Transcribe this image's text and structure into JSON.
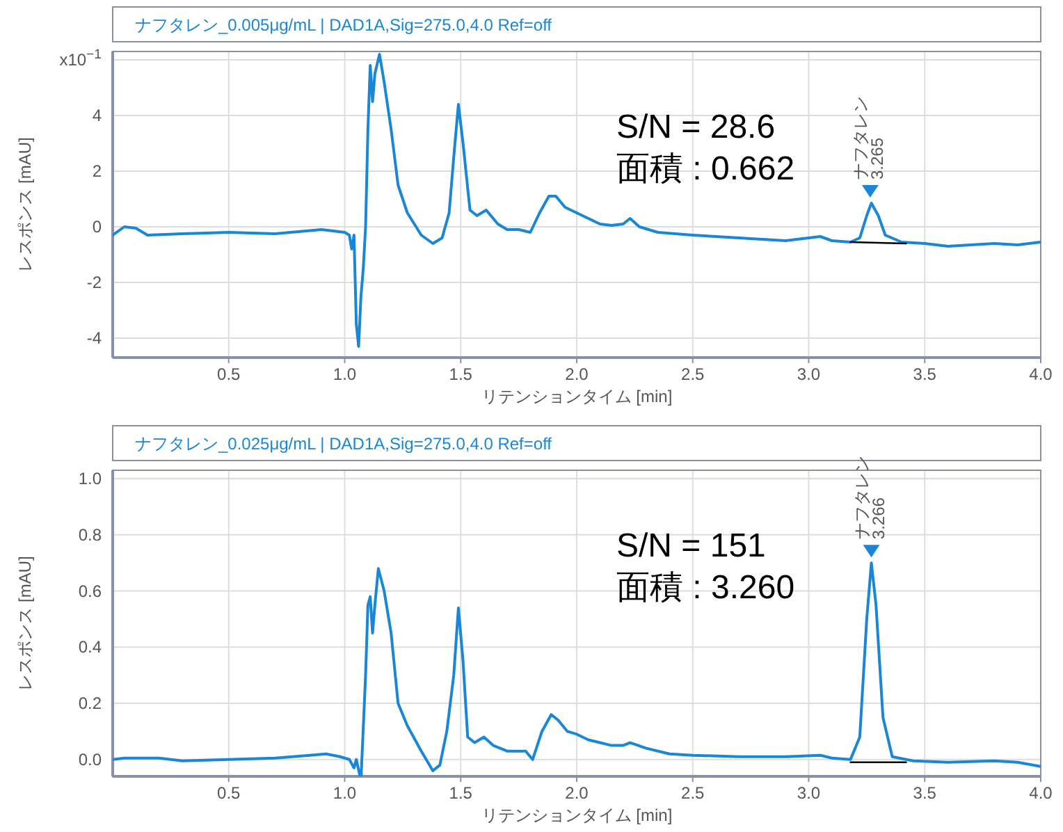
{
  "chart_data": [
    {
      "type": "line",
      "title": "ナフタレン_0.005μg/mL | DAD1A,Sig=275.0,4.0  Ref=off",
      "xlabel": "リテンションタイム [min]",
      "ylabel": "レスポンス [mAU]",
      "xlim": [
        0,
        4.0
      ],
      "xticks": [
        {
          "value": 0.5,
          "label": "0.5"
        },
        {
          "value": 1.0,
          "label": "1.0"
        },
        {
          "value": 1.5,
          "label": "1.5"
        },
        {
          "value": 2.0,
          "label": "2.0"
        },
        {
          "value": 2.5,
          "label": "2.5"
        },
        {
          "value": 3.0,
          "label": "3.0"
        },
        {
          "value": 3.5,
          "label": "3.5"
        },
        {
          "value": 4.0,
          "label": "4.0"
        }
      ],
      "ylim": [
        -4.7,
        6.3
      ],
      "yticks": [
        -4,
        -2,
        0,
        2,
        4,
        {
          "value": 6,
          "label": "x10$^{−1}$"
        }
      ],
      "grid": true,
      "series": [
        {
          "color": "#1a86d6",
          "x": [
            0,
            0.05,
            0.1,
            0.15,
            0.3,
            0.5,
            0.7,
            0.9,
            1.0,
            1.02,
            1.03,
            1.04,
            1.05,
            1.06,
            1.07,
            1.08,
            1.09,
            1.1,
            1.11,
            1.12,
            1.13,
            1.15,
            1.17,
            1.2,
            1.23,
            1.27,
            1.33,
            1.38,
            1.42,
            1.45,
            1.47,
            1.49,
            1.51,
            1.54,
            1.57,
            1.61,
            1.66,
            1.7,
            1.75,
            1.8,
            1.84,
            1.88,
            1.91,
            1.95,
            2.0,
            2.05,
            2.1,
            2.15,
            2.2,
            2.23,
            2.27,
            2.35,
            2.5,
            2.7,
            2.9,
            3.0,
            3.05,
            3.1,
            3.18,
            3.22,
            3.25,
            3.27,
            3.3,
            3.33,
            3.4,
            3.5,
            3.6,
            3.8,
            3.9,
            4.0
          ],
          "values": [
            -0.3,
            0.0,
            -0.05,
            -0.3,
            -0.25,
            -0.2,
            -0.25,
            -0.1,
            -0.2,
            -0.3,
            -0.8,
            -0.3,
            -3.5,
            -4.3,
            -2.5,
            -1.5,
            0,
            3.5,
            5.8,
            4.5,
            5.5,
            6.2,
            5.2,
            3.5,
            1.5,
            0.5,
            -0.3,
            -0.6,
            -0.4,
            0.5,
            2.5,
            4.4,
            3.0,
            0.6,
            0.4,
            0.6,
            0.1,
            -0.1,
            -0.1,
            -0.2,
            0.5,
            1.1,
            1.1,
            0.7,
            0.5,
            0.3,
            0.1,
            0.05,
            0.1,
            0.3,
            0.0,
            -0.2,
            -0.3,
            -0.4,
            -0.5,
            -0.4,
            -0.35,
            -0.5,
            -0.55,
            -0.4,
            0.4,
            0.85,
            0.4,
            -0.3,
            -0.55,
            -0.6,
            -0.7,
            -0.6,
            -0.65,
            -0.55
          ]
        },
        {
          "color": "#000000",
          "x": [
            3.18,
            3.42
          ],
          "values": [
            -0.55,
            -0.6
          ]
        }
      ],
      "annotations": [
        "S/N = 28.6",
        "面積 : 0.662",
        {
          "text": "ナフタレン\n3.265",
          "x": 3.265,
          "y": 0.85
        }
      ]
    },
    {
      "type": "line",
      "title": "ナフタレン_0.025μg/mL | DAD1A,Sig=275.0,4.0  Ref=off",
      "xlabel": "リテンションタイム [min]",
      "ylabel": "レスポンス [mAU]",
      "xlim": [
        0,
        4.0
      ],
      "xticks": [
        {
          "value": 0.5,
          "label": "0.5"
        },
        {
          "value": 1.0,
          "label": "1.0"
        },
        {
          "value": 1.5,
          "label": "1.5"
        },
        {
          "value": 2.0,
          "label": "2.0"
        },
        {
          "value": 2.5,
          "label": "2.5"
        },
        {
          "value": 3.0,
          "label": "3.0"
        },
        {
          "value": 3.5,
          "label": "3.5"
        },
        {
          "value": 4.0,
          "label": "4.0"
        }
      ],
      "ylim": [
        -0.06,
        1.03
      ],
      "yticks": [
        {
          "value": 0,
          "label": "0.0"
        },
        {
          "value": 0.2,
          "label": "0.2"
        },
        {
          "value": 0.4,
          "label": "0.4"
        },
        {
          "value": 0.6,
          "label": "0.6"
        },
        {
          "value": 0.8,
          "label": "0.8"
        },
        {
          "value": 1.0,
          "label": "1.0"
        }
      ],
      "grid": true,
      "series": [
        {
          "color": "#1a86d6",
          "x": [
            0,
            0.05,
            0.2,
            0.3,
            0.5,
            0.7,
            0.85,
            0.92,
            0.98,
            1.02,
            1.04,
            1.05,
            1.07,
            1.09,
            1.1,
            1.11,
            1.12,
            1.13,
            1.145,
            1.17,
            1.2,
            1.23,
            1.27,
            1.33,
            1.38,
            1.41,
            1.44,
            1.47,
            1.49,
            1.51,
            1.53,
            1.56,
            1.6,
            1.64,
            1.7,
            1.78,
            1.81,
            1.85,
            1.89,
            1.92,
            1.96,
            2.0,
            2.05,
            2.1,
            2.15,
            2.2,
            2.23,
            2.3,
            2.4,
            2.5,
            2.7,
            2.9,
            3.05,
            3.1,
            3.18,
            3.22,
            3.25,
            3.27,
            3.29,
            3.32,
            3.36,
            3.45,
            3.6,
            3.8,
            3.9,
            4.0
          ],
          "values": [
            0,
            0.005,
            0.005,
            -0.005,
            0.0,
            0.005,
            0.015,
            0.02,
            0.01,
            0.0,
            -0.03,
            0.0,
            null,
            0.3,
            0.55,
            0.58,
            0.45,
            0.55,
            0.68,
            0.6,
            0.45,
            0.2,
            0.12,
            0.03,
            -0.04,
            -0.02,
            0.1,
            0.3,
            0.54,
            0.35,
            0.08,
            0.06,
            0.08,
            0.05,
            0.03,
            0.03,
            0.0,
            0.1,
            0.16,
            0.14,
            0.1,
            0.09,
            0.07,
            0.06,
            0.05,
            0.05,
            0.06,
            0.04,
            0.02,
            0.015,
            0.01,
            0.01,
            0.015,
            0.005,
            0.0,
            0.08,
            0.5,
            0.7,
            0.55,
            0.15,
            0.01,
            -0.005,
            -0.01,
            -0.005,
            -0.01,
            -0.025
          ]
        },
        {
          "color": "#000000",
          "x": [
            3.18,
            3.42
          ],
          "values": [
            -0.01,
            -0.01
          ]
        }
      ],
      "annotations": [
        "S/N = 151",
        "面積 : 3.260",
        {
          "text": "ナフタレン\n3.266",
          "x": 3.27,
          "y": 0.7
        }
      ]
    }
  ]
}
